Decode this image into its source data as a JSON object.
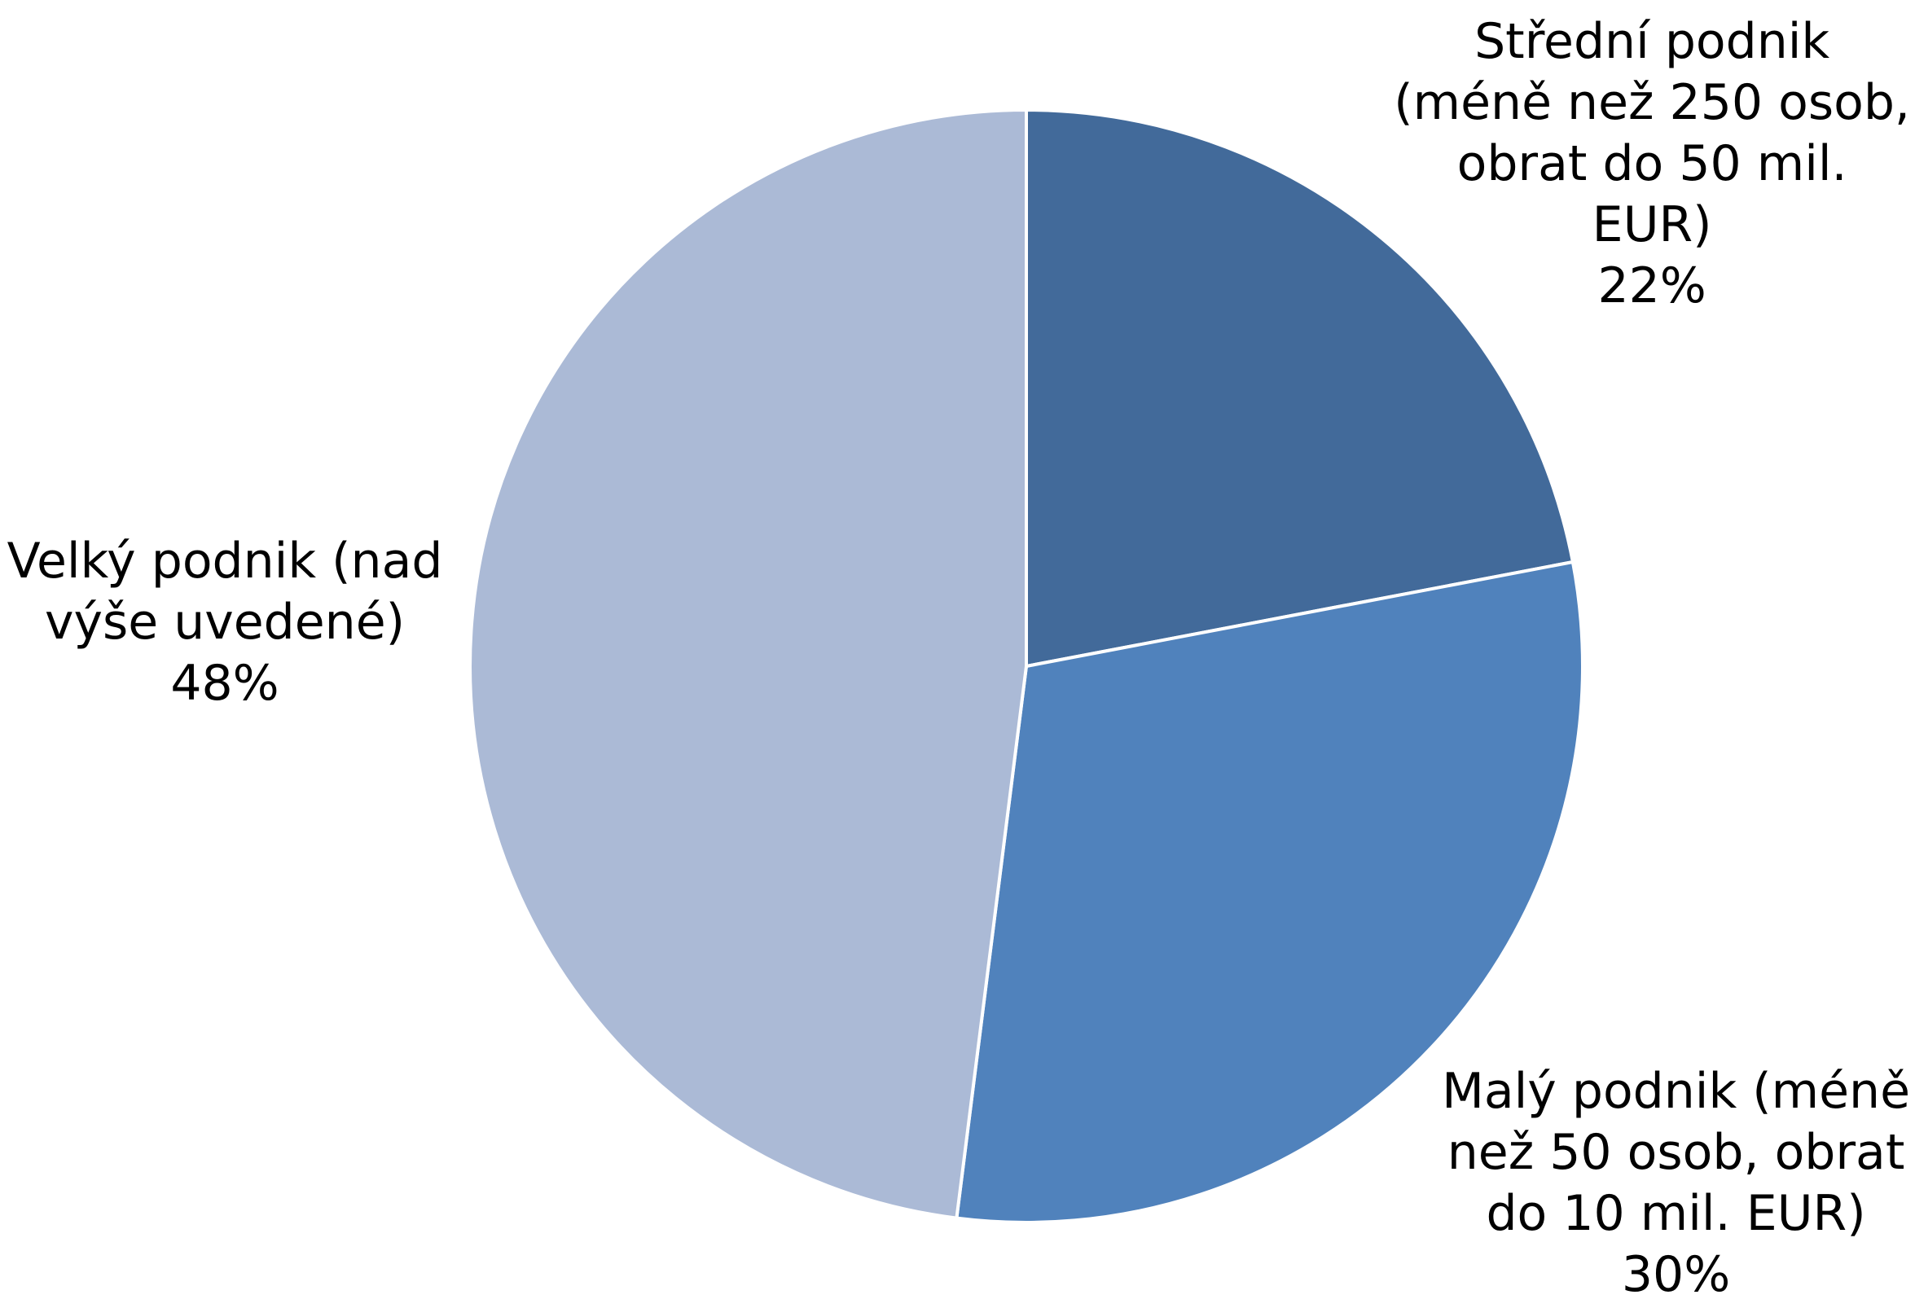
{
  "chart_data": {
    "type": "pie",
    "title": "",
    "start_angle_deg": 0,
    "direction": "clockwise",
    "legend": "none",
    "slices": [
      {
        "name": "Střední podnik (méně než 250 osob, obrat do 50 mil. EUR)",
        "label_lines": [
          "Střední podnik",
          "(méně než 250 osob,",
          "obrat do 50 mil.",
          "EUR)"
        ],
        "percent_label": "22%",
        "value": 22,
        "color": "#426A9A"
      },
      {
        "name": "Malý podnik (méně než 50 osob, obrat do 10 mil. EUR)",
        "label_lines": [
          "Malý podnik (méně",
          "než 50 osob, obrat",
          "do 10 mil. EUR)"
        ],
        "percent_label": "30%",
        "value": 30,
        "color": "#5082BC"
      },
      {
        "name": "Velký podnik (nad výše uvedené)",
        "label_lines": [
          "Velký podnik (nad",
          "výše uvedené)"
        ],
        "percent_label": "48%",
        "value": 48,
        "color": "#ABBAD6"
      }
    ]
  }
}
